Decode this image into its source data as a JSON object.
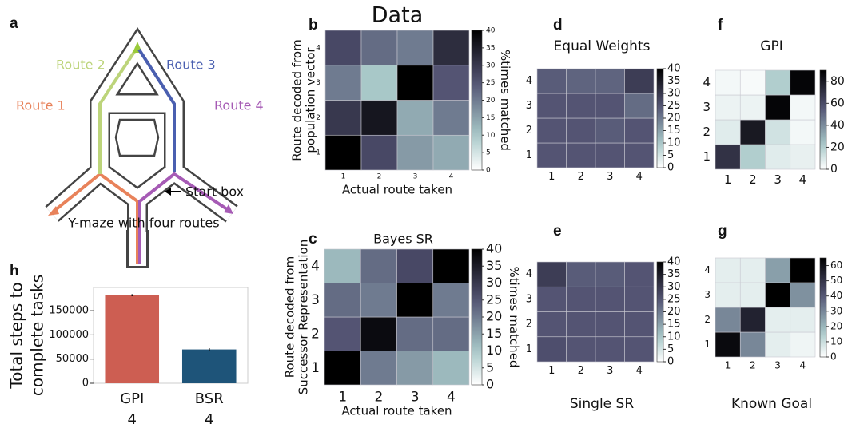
{
  "panel_labels": [
    "a",
    "b",
    "c",
    "d",
    "e",
    "f",
    "g",
    "h"
  ],
  "maze": {
    "routes": [
      {
        "label": "Route 1",
        "color": "#e8825a"
      },
      {
        "label": "Route 2",
        "color": "#bcd47a"
      },
      {
        "label": "Route 3",
        "color": "#4a5fb0"
      },
      {
        "label": "Route 4",
        "color": "#a65bb5"
      }
    ],
    "start_label": "Start box",
    "caption": "Y-maze with four routes"
  },
  "chart_data": [
    {
      "type": "heatmap",
      "title": "Data",
      "x_label": "Actual route taken",
      "y_label": [
        "Route decoded from",
        "population vector"
      ],
      "x": [
        1,
        2,
        3,
        4
      ],
      "y": [
        1,
        2,
        3,
        4
      ],
      "colormap": "bone_r",
      "colorbar_label": "%times matched",
      "values": [
        [
          40,
          27,
          16,
          14
        ],
        [
          30,
          36,
          14,
          20
        ],
        [
          20,
          10,
          40,
          25
        ],
        [
          27,
          22,
          20,
          32
        ]
      ],
      "zlim": [
        0,
        40
      ],
      "zticks": [
        0,
        5,
        10,
        15,
        20,
        25,
        30,
        35,
        40
      ]
    },
    {
      "type": "heatmap",
      "title": "Bayes SR",
      "x_label": "Actual route taken",
      "y_label": [
        "Route decoded from",
        "Successor Representation"
      ],
      "x": [
        1,
        2,
        3,
        4
      ],
      "y": [
        1,
        2,
        3,
        4
      ],
      "colormap": "bone_r",
      "colorbar_label": "%times matched",
      "values": [
        [
          40,
          20,
          16,
          12
        ],
        [
          25,
          38,
          22,
          22
        ],
        [
          22,
          20,
          40,
          20
        ],
        [
          12,
          22,
          27,
          40
        ]
      ],
      "zlim": [
        0,
        40
      ],
      "zticks": [
        0,
        5,
        10,
        15,
        20,
        25,
        30,
        35,
        40
      ]
    },
    {
      "type": "heatmap",
      "title": "Equal Weights",
      "x": [
        1,
        2,
        3,
        4
      ],
      "y": [
        1,
        2,
        3,
        4
      ],
      "colormap": "bone_r",
      "values": [
        [
          25,
          25,
          25,
          25
        ],
        [
          25,
          25,
          24,
          25
        ],
        [
          25,
          25,
          25,
          22
        ],
        [
          24,
          23,
          23,
          29
        ]
      ],
      "zlim": [
        0,
        40
      ],
      "zticks": [
        0,
        5,
        10,
        15,
        20,
        25,
        30,
        35,
        40
      ]
    },
    {
      "type": "heatmap",
      "title": "Single SR",
      "x": [
        1,
        2,
        3,
        4
      ],
      "y": [
        1,
        2,
        3,
        4
      ],
      "colormap": "bone_r",
      "values": [
        [
          26,
          25,
          25,
          25
        ],
        [
          25,
          25,
          25,
          25
        ],
        [
          25,
          25,
          25,
          25
        ],
        [
          29,
          24,
          24,
          25
        ]
      ],
      "zlim": [
        0,
        40
      ],
      "zticks": [
        0,
        5,
        10,
        15,
        20,
        25,
        30,
        35,
        40
      ]
    },
    {
      "type": "heatmap",
      "title": "GPI",
      "x": [
        1,
        2,
        3,
        4
      ],
      "y": [
        1,
        2,
        3,
        4
      ],
      "colormap": "bone_r",
      "values": [
        [
          70,
          20,
          8,
          6
        ],
        [
          8,
          80,
          12,
          3
        ],
        [
          5,
          5,
          88,
          3
        ],
        [
          3,
          2,
          20,
          88
        ]
      ],
      "zlim": [
        0,
        90
      ],
      "zticks": [
        0,
        20,
        40,
        60,
        80
      ]
    },
    {
      "type": "heatmap",
      "title": "Known Goal",
      "x": [
        1,
        2,
        3,
        4
      ],
      "y": [
        1,
        2,
        3,
        4
      ],
      "colormap": "bone_r",
      "values": [
        [
          62,
          30,
          5,
          3
        ],
        [
          30,
          55,
          5,
          5
        ],
        [
          5,
          5,
          65,
          28
        ],
        [
          5,
          5,
          25,
          65
        ]
      ],
      "zlim": [
        0,
        65
      ],
      "zticks": [
        0,
        10,
        20,
        30,
        40,
        50,
        60
      ]
    },
    {
      "type": "bar",
      "y_label": [
        "Total steps to",
        "complete tasks"
      ],
      "categories": [
        "GPI",
        "BSR"
      ],
      "sublabels": [
        "4",
        "4"
      ],
      "values": [
        182000,
        70000
      ],
      "errors": [
        2000,
        2500
      ],
      "colors": [
        "#cd5e52",
        "#1e5479"
      ],
      "ylim": [
        0,
        198000
      ],
      "yticks": [
        0,
        50000,
        100000,
        150000
      ]
    }
  ]
}
